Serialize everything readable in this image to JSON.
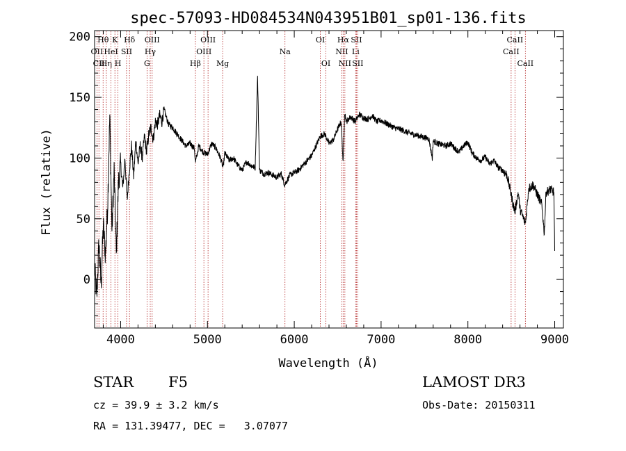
{
  "chart_data": {
    "type": "line",
    "title": "spec-57093-HD084534N043951B01_sp01-136.fits",
    "xlabel": "Wavelength (Å)",
    "ylabel": "Flux (relative)",
    "xlim": [
      3700,
      9100
    ],
    "ylim": [
      -40,
      205
    ],
    "xticks": [
      {
        "value": 4000,
        "label": "4000"
      },
      {
        "value": 5000,
        "label": "5000"
      },
      {
        "value": 6000,
        "label": "6000"
      },
      {
        "value": 7000,
        "label": "7000"
      },
      {
        "value": 8000,
        "label": "8000"
      },
      {
        "value": 9000,
        "label": "9000"
      }
    ],
    "yticks": [
      {
        "value": 0,
        "label": "0"
      },
      {
        "value": 50,
        "label": "50"
      },
      {
        "value": 100,
        "label": "100"
      },
      {
        "value": 150,
        "label": "150"
      },
      {
        "value": 200,
        "label": "200"
      }
    ],
    "series": [
      {
        "name": "flux",
        "x": [
          3700,
          3725,
          3750,
          3775,
          3800,
          3825,
          3850,
          3875,
          3900,
          3925,
          3950,
          3975,
          4000,
          4025,
          4050,
          4075,
          4100,
          4125,
          4150,
          4175,
          4200,
          4225,
          4250,
          4275,
          4300,
          4325,
          4350,
          4375,
          4400,
          4425,
          4450,
          4475,
          4500,
          4550,
          4600,
          4650,
          4700,
          4750,
          4800,
          4850,
          4861,
          4900,
          4950,
          5000,
          5050,
          5100,
          5150,
          5180,
          5200,
          5250,
          5300,
          5350,
          5400,
          5450,
          5500,
          5550,
          5577,
          5600,
          5650,
          5700,
          5750,
          5800,
          5850,
          5890,
          5950,
          6000,
          6050,
          6100,
          6150,
          6200,
          6250,
          6300,
          6350,
          6400,
          6450,
          6500,
          6540,
          6563,
          6580,
          6600,
          6650,
          6700,
          6750,
          6800,
          6850,
          6900,
          6950,
          7000,
          7050,
          7100,
          7150,
          7200,
          7250,
          7300,
          7350,
          7400,
          7450,
          7500,
          7550,
          7590,
          7600,
          7650,
          7700,
          7750,
          7800,
          7850,
          7900,
          7950,
          8000,
          8050,
          8100,
          8150,
          8200,
          8250,
          8300,
          8350,
          8400,
          8450,
          8498,
          8520,
          8542,
          8580,
          8600,
          8662,
          8700,
          8750,
          8800,
          8850,
          8880,
          8900,
          8950,
          8990,
          9000
        ],
        "y": [
          10,
          -15,
          30,
          -5,
          45,
          20,
          60,
          135,
          40,
          90,
          20,
          80,
          95,
          75,
          100,
          65,
          90,
          110,
          85,
          115,
          95,
          110,
          100,
          118,
          105,
          120,
          125,
          115,
          130,
          128,
          135,
          130,
          140,
          128,
          125,
          120,
          115,
          110,
          112,
          108,
          96,
          110,
          105,
          103,
          112,
          108,
          100,
          92,
          104,
          98,
          100,
          94,
          90,
          97,
          94,
          92,
          168,
          90,
          87,
          88,
          86,
          84,
          87,
          78,
          86,
          88,
          90,
          94,
          98,
          102,
          110,
          118,
          120,
          112,
          115,
          124,
          130,
          95,
          138,
          130,
          134,
          130,
          136,
          133,
          132,
          135,
          130,
          131,
          129,
          127,
          125,
          124,
          123,
          121,
          120,
          119,
          118,
          117,
          116,
          100,
          114,
          112,
          111,
          110,
          112,
          108,
          105,
          110,
          113,
          104,
          100,
          98,
          101,
          95,
          98,
          92,
          90,
          86,
          70,
          62,
          56,
          72,
          58,
          46,
          75,
          78,
          70,
          62,
          38,
          72,
          74,
          72,
          22
        ]
      }
    ],
    "lines": [
      {
        "wave": 3727,
        "label": "OII",
        "row": 1
      },
      {
        "wave": 3750,
        "label": "CII",
        "row": 2
      },
      {
        "wave": 3798,
        "label": "Hθ",
        "row": 0
      },
      {
        "wave": 3835,
        "label": "Hη",
        "row": 2
      },
      {
        "wave": 3889,
        "label": "HeI",
        "row": 1
      },
      {
        "wave": 3934,
        "label": "K",
        "row": 0
      },
      {
        "wave": 3969,
        "label": "H",
        "row": 2
      },
      {
        "wave": 4068,
        "label": "SII",
        "row": 1
      },
      {
        "wave": 4102,
        "label": "Hδ",
        "row": 0
      },
      {
        "wave": 4304,
        "label": "G",
        "row": 2
      },
      {
        "wave": 4341,
        "label": "Hγ",
        "row": 1
      },
      {
        "wave": 4363,
        "label": "OIII",
        "row": 0
      },
      {
        "wave": 4861,
        "label": "Hβ",
        "row": 2
      },
      {
        "wave": 4959,
        "label": "OIII",
        "row": 1
      },
      {
        "wave": 5007,
        "label": "OIII",
        "row": 0
      },
      {
        "wave": 5175,
        "label": "Mg",
        "row": 2
      },
      {
        "wave": 5893,
        "label": "Na",
        "row": 1
      },
      {
        "wave": 6300,
        "label": "OI",
        "row": 0
      },
      {
        "wave": 6364,
        "label": "OI",
        "row": 2
      },
      {
        "wave": 6548,
        "label": "NII",
        "row": 1
      },
      {
        "wave": 6563,
        "label": "Hα",
        "row": 0
      },
      {
        "wave": 6583,
        "label": "NII",
        "row": 2
      },
      {
        "wave": 6707,
        "label": "Li",
        "row": 1
      },
      {
        "wave": 6716,
        "label": "SII",
        "row": 0
      },
      {
        "wave": 6731,
        "label": "SII",
        "row": 2
      },
      {
        "wave": 8498,
        "label": "CaII",
        "row": 1
      },
      {
        "wave": 8542,
        "label": "CaII",
        "row": 0
      },
      {
        "wave": 8662,
        "label": "CaII",
        "row": 2
      }
    ]
  },
  "info": {
    "class_label": "STAR",
    "subclass": "F5",
    "survey": "LAMOST DR3",
    "cz": "cz = 39.9 ± 3.2 km/s",
    "obs_date": "Obs-Date: 20150311",
    "coords": "RA = 131.39477, DEC =   3.07077"
  }
}
